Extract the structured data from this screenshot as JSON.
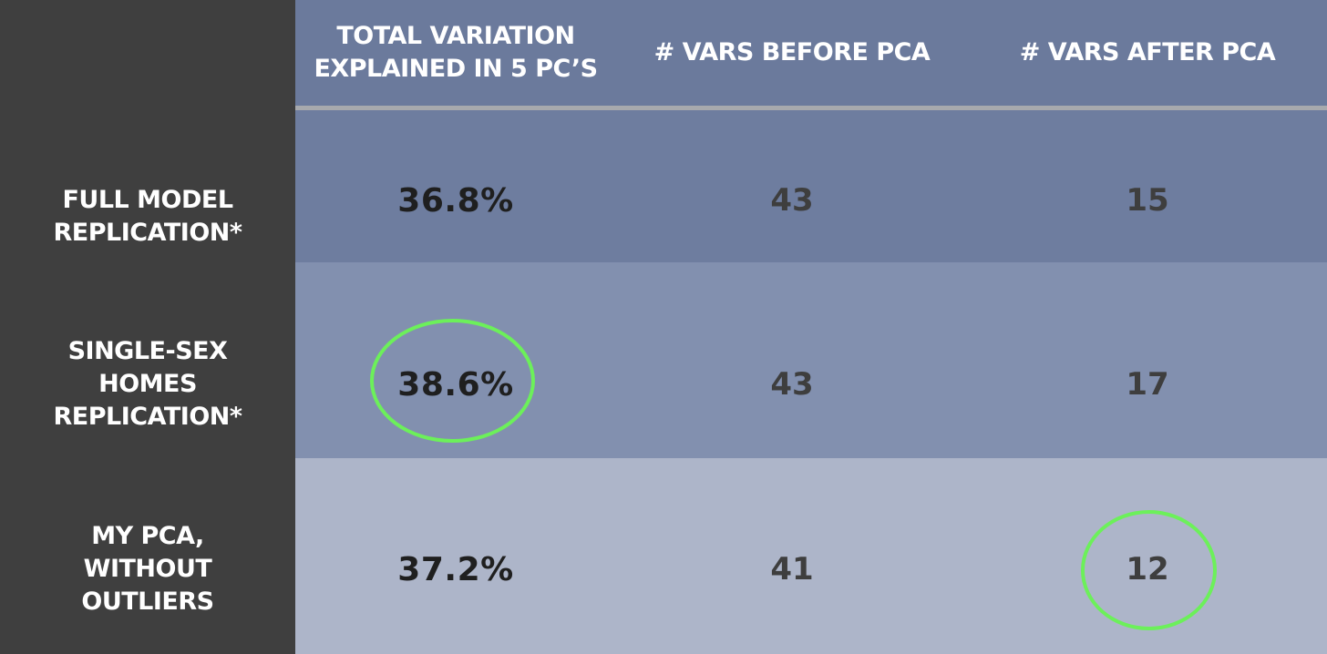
{
  "table": {
    "headers": [
      "TOTAL  VARIATION\nEXPLAINED IN 5 PC’S",
      "# VARS BEFORE PCA",
      "# VARS AFTER PCA"
    ],
    "rows": [
      {
        "label": "FULL MODEL\nREPLICATION*",
        "variation": "36.8%",
        "vars_before": "43",
        "vars_after": "15"
      },
      {
        "label": "SINGLE-SEX\nHOMES\nREPLICATION*",
        "variation": "38.6%",
        "vars_before": "43",
        "vars_after": "17"
      },
      {
        "label": "MY PCA,\nWITHOUT\nOUTLIERS",
        "variation": "37.2%",
        "vars_before": "41",
        "vars_after": "12"
      }
    ]
  },
  "colors": {
    "label_column": "#3f3f3f",
    "header_background": "#6b7a9c",
    "row_1_background": "#6e7d9f",
    "row_2_background": "#8290af",
    "row_3_background": "#adb5c9",
    "highlight_ring": "#6cf05a"
  },
  "highlights": [
    "SINGLE-SEX HOMES REPLICATION* — variation",
    "MY PCA, WITHOUT OUTLIERS — vars after"
  ]
}
